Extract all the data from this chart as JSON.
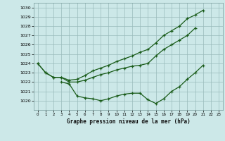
{
  "xlabel": "Graphe pression niveau de la mer (hPa)",
  "hours": [
    0,
    1,
    2,
    3,
    4,
    5,
    6,
    7,
    8,
    9,
    10,
    11,
    12,
    13,
    14,
    15,
    16,
    17,
    18,
    19,
    20,
    21,
    22,
    23
  ],
  "series_top": [
    1024.0,
    1023.0,
    1022.5,
    1022.5,
    1022.2,
    1022.3,
    1022.7,
    1023.2,
    1023.5,
    1023.8,
    1024.2,
    1024.5,
    1024.8,
    1025.2,
    1025.5,
    1026.2,
    1027.0,
    1027.5,
    1028.0,
    1028.8,
    1029.2,
    1029.7,
    null,
    null
  ],
  "series_mid": [
    1024.0,
    1023.0,
    1022.5,
    1022.5,
    1022.0,
    1022.0,
    1022.2,
    1022.5,
    1022.8,
    1023.0,
    1023.3,
    1023.5,
    1023.7,
    1023.8,
    1024.0,
    1024.8,
    1025.5,
    1026.0,
    1026.5,
    1027.0,
    1027.8,
    null,
    null,
    null
  ],
  "series_bot": [
    null,
    null,
    null,
    1022.0,
    1021.8,
    1020.5,
    1020.3,
    1020.2,
    1020.0,
    1020.2,
    1020.5,
    1020.7,
    1020.8,
    1020.8,
    1020.1,
    1019.7,
    1020.2,
    1021.0,
    1021.5,
    1022.3,
    1023.0,
    1023.8,
    null,
    null
  ],
  "ylim": [
    1019.0,
    1030.5
  ],
  "xlim": [
    -0.5,
    23.5
  ],
  "yticks": [
    1020,
    1021,
    1022,
    1023,
    1024,
    1025,
    1026,
    1027,
    1028,
    1029,
    1030
  ],
  "xticks": [
    0,
    1,
    2,
    3,
    4,
    5,
    6,
    7,
    8,
    9,
    10,
    11,
    12,
    13,
    14,
    15,
    16,
    17,
    18,
    19,
    20,
    21,
    22,
    23
  ],
  "bg_color": "#cce8e8",
  "line_color": "#1a5c1a",
  "grid_color": "#99bbbb"
}
